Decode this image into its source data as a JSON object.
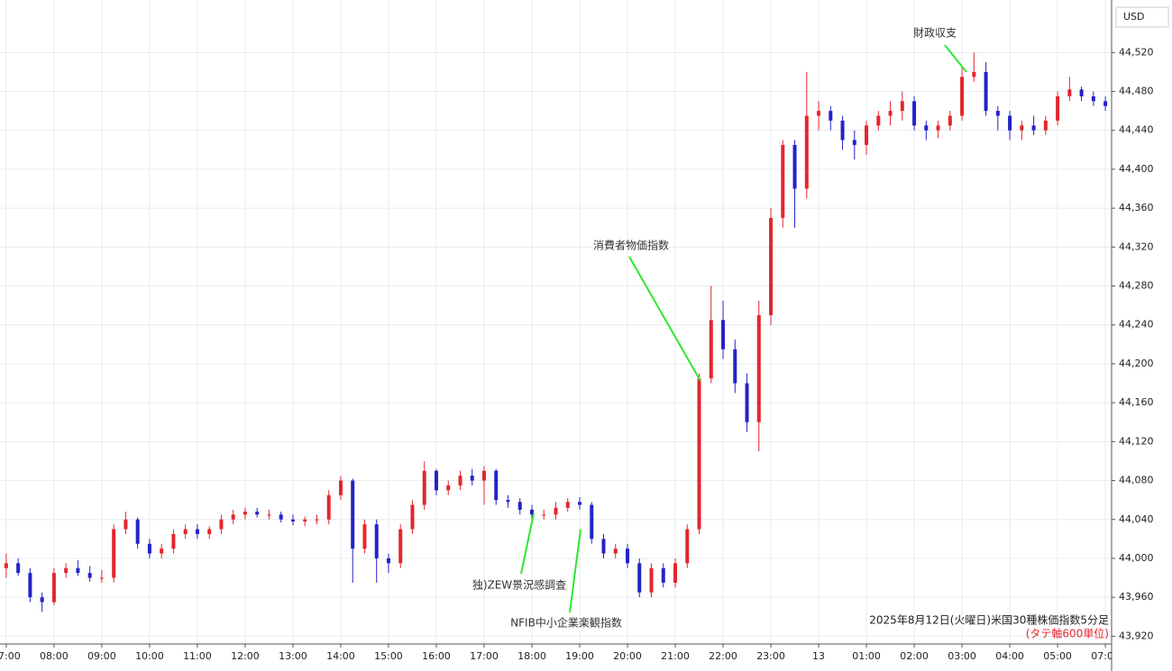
{
  "chart_data": {
    "type": "candlestick",
    "currency": "USD",
    "caption": "2025年8月12日(火曜日)米国30種株価指数5分足",
    "caption_note": "(タテ軸600単位)",
    "annotations": [
      "財政収支",
      "消費者物価指数",
      "独)ZEW景況感調査",
      "NFIB中小企業楽観指数"
    ],
    "up_color": "#e3262d",
    "down_color": "#2323c8",
    "annotation_color": "#2ee82e",
    "grid": true,
    "ylim": [
      43912,
      44574
    ],
    "yticks": [
      {
        "value": 43920,
        "label": "43,920"
      },
      {
        "value": 43960,
        "label": "43,960"
      },
      {
        "value": 44000,
        "label": "44,000"
      },
      {
        "value": 44040,
        "label": "44,040"
      },
      {
        "value": 44080,
        "label": "44,080"
      },
      {
        "value": 44120,
        "label": "44,120"
      },
      {
        "value": 44160,
        "label": "44,160"
      },
      {
        "value": 44200,
        "label": "44,200"
      },
      {
        "value": 44240,
        "label": "44,240"
      },
      {
        "value": 44280,
        "label": "44,280"
      },
      {
        "value": 44320,
        "label": "44,320"
      },
      {
        "value": 44360,
        "label": "44,360"
      },
      {
        "value": 44400,
        "label": "44,400"
      },
      {
        "value": 44440,
        "label": "44,440"
      },
      {
        "value": 44480,
        "label": "44,480"
      },
      {
        "value": 44520,
        "label": "44,520"
      }
    ],
    "xlim": [
      -0.13,
      23.13
    ],
    "xticks": [
      {
        "value": 0,
        "label": "07:00"
      },
      {
        "value": 1,
        "label": "08:00"
      },
      {
        "value": 2,
        "label": "09:00"
      },
      {
        "value": 3,
        "label": "10:00"
      },
      {
        "value": 4,
        "label": "11:00"
      },
      {
        "value": 5,
        "label": "12:00"
      },
      {
        "value": 6,
        "label": "13:00"
      },
      {
        "value": 7,
        "label": "14:00"
      },
      {
        "value": 8,
        "label": "15:00"
      },
      {
        "value": 9,
        "label": "16:00"
      },
      {
        "value": 10,
        "label": "17:00"
      },
      {
        "value": 11,
        "label": "18:00"
      },
      {
        "value": 12,
        "label": "19:00"
      },
      {
        "value": 13,
        "label": "20:00"
      },
      {
        "value": 14,
        "label": "21:00"
      },
      {
        "value": 15,
        "label": "22:00"
      },
      {
        "value": 16,
        "label": "23:00"
      },
      {
        "value": 17,
        "label": "13"
      },
      {
        "value": 18,
        "label": "01:00"
      },
      {
        "value": 19,
        "label": "02:00"
      },
      {
        "value": 20,
        "label": "03:00"
      },
      {
        "value": 21,
        "label": "04:00"
      },
      {
        "value": 22,
        "label": "05:00"
      },
      {
        "value": 23,
        "label": "07:00"
      }
    ],
    "x": [
      0,
      0.25,
      0.5,
      0.75,
      1,
      1.25,
      1.5,
      1.75,
      2,
      2.25,
      2.5,
      2.75,
      3,
      3.25,
      3.5,
      3.75,
      4,
      4.25,
      4.5,
      4.75,
      5,
      5.25,
      5.5,
      5.75,
      6,
      6.25,
      6.5,
      6.75,
      7,
      7.25,
      7.5,
      7.75,
      8,
      8.25,
      8.5,
      8.75,
      9,
      9.25,
      9.5,
      9.75,
      10,
      10.25,
      10.5,
      10.75,
      11,
      11.25,
      11.5,
      11.75,
      12,
      12.25,
      12.5,
      12.75,
      13,
      13.25,
      13.5,
      13.75,
      14,
      14.25,
      14.5,
      14.75,
      15,
      15.25,
      15.5,
      15.75,
      16,
      16.25,
      16.5,
      16.75,
      17,
      17.25,
      17.5,
      17.75,
      18,
      18.25,
      18.5,
      18.75,
      19,
      19.25,
      19.5,
      19.75,
      20,
      20.25,
      20.5,
      20.75,
      21,
      21.25,
      21.5,
      21.75,
      22,
      22.25,
      22.5,
      22.75,
      23
    ],
    "open": [
      43990,
      43995,
      43985,
      43960,
      43955,
      43985,
      43990,
      43985,
      43980,
      43980,
      44030,
      44040,
      44015,
      44005,
      44010,
      44025,
      44030,
      44025,
      44030,
      44040,
      44045,
      44048,
      44045,
      44045,
      44040,
      44038,
      44040,
      44040,
      44065,
      44080,
      44010,
      44035,
      44000,
      43995,
      44030,
      44055,
      44090,
      44070,
      44075,
      44085,
      44080,
      44090,
      44060,
      44058,
      44050,
      44045,
      44045,
      44052,
      44058,
      44055,
      44020,
      44005,
      44010,
      43995,
      43965,
      43990,
      43975,
      43995,
      44030,
      44185,
      44245,
      44215,
      44180,
      44140,
      44250,
      44350,
      44425,
      44380,
      44455,
      44460,
      44450,
      44430,
      44425,
      44445,
      44455,
      44460,
      44470,
      44445,
      44440,
      44445,
      44455,
      44495,
      44500,
      44460,
      44455,
      44440,
      44445,
      44440,
      44450,
      44475,
      44482,
      44475,
      44470
    ],
    "high": [
      44005,
      44000,
      43990,
      43965,
      43990,
      43995,
      43998,
      43992,
      43988,
      44035,
      44048,
      44042,
      44020,
      44015,
      44030,
      44035,
      44035,
      44033,
      44045,
      44050,
      44052,
      44052,
      44050,
      44048,
      44045,
      44043,
      44045,
      44070,
      44085,
      44082,
      44040,
      44040,
      44005,
      44035,
      44060,
      44100,
      44092,
      44080,
      44090,
      44092,
      44095,
      44092,
      44065,
      44062,
      44055,
      44050,
      44058,
      44062,
      44063,
      44058,
      44025,
      44015,
      44015,
      44000,
      43995,
      43995,
      44000,
      44035,
      44190,
      44280,
      44265,
      44225,
      44190,
      44265,
      44360,
      44430,
      44430,
      44500,
      44470,
      44465,
      44455,
      44440,
      44450,
      44460,
      44470,
      44480,
      44475,
      44450,
      44450,
      44460,
      44505,
      44520,
      44510,
      44465,
      44460,
      44450,
      44455,
      44455,
      44480,
      44495,
      44485,
      44480,
      44475
    ],
    "low": [
      43980,
      43982,
      43955,
      43945,
      43952,
      43980,
      43982,
      43976,
      43975,
      43975,
      44025,
      44010,
      44000,
      44000,
      44005,
      44020,
      44020,
      44020,
      44025,
      44035,
      44040,
      44042,
      44040,
      44037,
      44034,
      44033,
      44035,
      44035,
      44060,
      43975,
      44005,
      43975,
      43985,
      43990,
      44025,
      44050,
      44065,
      44065,
      44070,
      44075,
      44055,
      44055,
      44052,
      44045,
      44040,
      44040,
      44040,
      44048,
      44050,
      44015,
      44000,
      44000,
      43990,
      43960,
      43960,
      43970,
      43970,
      43990,
      44025,
      44180,
      44205,
      44170,
      44130,
      44110,
      44240,
      44340,
      44340,
      44370,
      44440,
      44440,
      44420,
      44410,
      44415,
      44440,
      44445,
      44450,
      44440,
      44430,
      44432,
      44440,
      44450,
      44490,
      44455,
      44440,
      44430,
      44430,
      44435,
      44435,
      44445,
      44470,
      44470,
      44465,
      44460
    ],
    "close": [
      43995,
      43985,
      43960,
      43955,
      43985,
      43990,
      43985,
      43980,
      43980,
      44030,
      44040,
      44015,
      44005,
      44010,
      44025,
      44030,
      44025,
      44030,
      44040,
      44045,
      44048,
      44045,
      44045,
      44040,
      44038,
      44040,
      44040,
      44065,
      44080,
      44010,
      44035,
      44000,
      43995,
      44030,
      44055,
      44090,
      44070,
      44075,
      44085,
      44080,
      44090,
      44060,
      44058,
      44050,
      44045,
      44045,
      44052,
      44058,
      44055,
      44020,
      44005,
      44010,
      43995,
      43965,
      43990,
      43975,
      43995,
      44030,
      44185,
      44245,
      44215,
      44180,
      44140,
      44250,
      44350,
      44425,
      44380,
      44455,
      44460,
      44450,
      44430,
      44425,
      44445,
      44455,
      44460,
      44470,
      44445,
      44440,
      44445,
      44455,
      44495,
      44500,
      44460,
      44455,
      44440,
      44445,
      44440,
      44450,
      44475,
      44482,
      44475,
      44470,
      44465
    ]
  }
}
